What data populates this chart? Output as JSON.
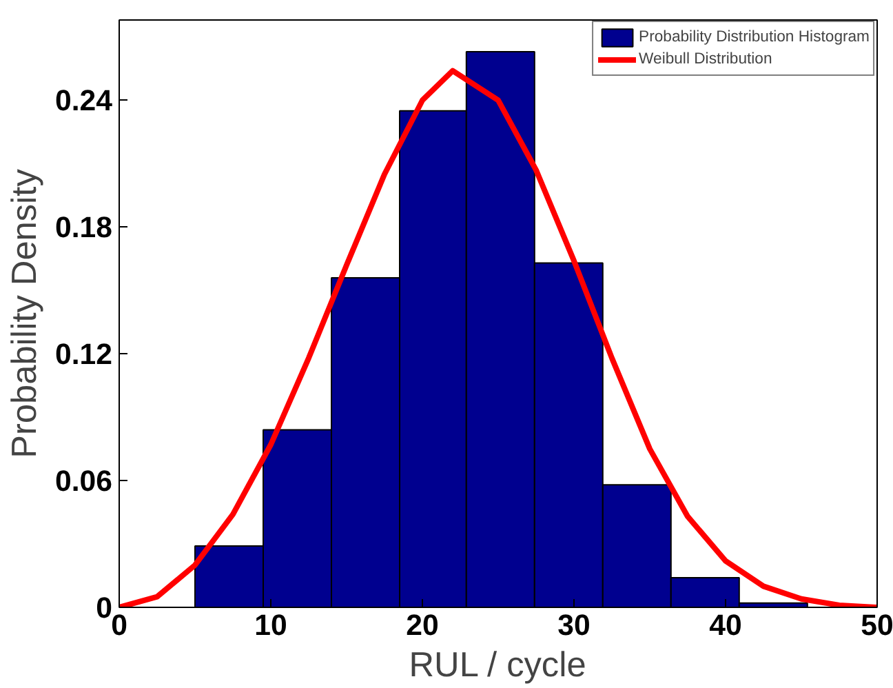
{
  "chart_data": {
    "type": "histogram",
    "xlabel": "RUL / cycle",
    "ylabel": "Probability Density",
    "series": [
      {
        "name": "Probability Distribution Histogram",
        "color": "#00008f",
        "bins": [
          5.0,
          9.5,
          14.0,
          18.5,
          22.9,
          27.4,
          31.9,
          36.4,
          40.9,
          45.4
        ],
        "values": [
          0.029,
          0.084,
          0.156,
          0.235,
          0.263,
          0.163,
          0.058,
          0.014,
          0.002
        ]
      },
      {
        "type": "line",
        "name": "Weibull Distribution",
        "color": "#ff0000",
        "x": [
          0,
          2.5,
          5,
          7.5,
          10,
          12.5,
          15,
          17.5,
          20,
          22,
          25,
          27.5,
          30,
          32.5,
          35,
          37.5,
          40,
          42.5,
          45,
          47.5,
          50
        ],
        "values": [
          0,
          0.005,
          0.02,
          0.044,
          0.077,
          0.118,
          0.162,
          0.205,
          0.24,
          0.254,
          0.24,
          0.207,
          0.164,
          0.118,
          0.075,
          0.043,
          0.022,
          0.01,
          0.004,
          0.001,
          0
        ]
      }
    ],
    "xlim": [
      0,
      50
    ],
    "xticks": [
      0,
      10,
      20,
      30,
      40,
      50
    ],
    "ylim": [
      0,
      0.278
    ],
    "yticks": [
      0,
      0.06,
      0.12,
      0.18,
      0.24
    ],
    "grid": false,
    "legend": "top right",
    "line_style": "solid",
    "marker": "none"
  }
}
